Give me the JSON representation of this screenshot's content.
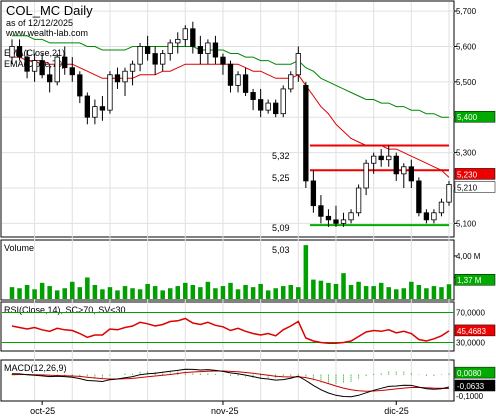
{
  "header": {
    "symbol": "COL_MC Daily",
    "asof": "as of 12/12/2025",
    "source": "www.wealth-lab.com"
  },
  "colors": {
    "up_candle": "#ffffff",
    "down_candle": "#000000",
    "ema21": "#dd0000",
    "ema70": "#008800",
    "volume": "#00a000",
    "rsi": "#dd0000",
    "rsi_band": "#00a000",
    "macd": "#000000",
    "macd_signal": "#cc0000",
    "macd_hist": "#00a000",
    "level_red": "#ee0000",
    "level_green": "#00aa00",
    "tag_green": "#00aa00",
    "tag_red": "#ee0000",
    "tag_black": "#000000"
  },
  "chart_data": [
    {
      "type": "candlestick",
      "title": "COL_MC Daily",
      "subtitle": "as of 12/12/2025",
      "legend": [
        "EMA(Close,21)",
        "EMA(Close,70)"
      ],
      "x_ticks": [
        "oct-25",
        "nov-25",
        "dic-25"
      ],
      "y_ticks": [
        "5,700",
        "5,600",
        "5,500",
        "5,400",
        "5,300",
        "5,200",
        "5,100"
      ],
      "ylim": [
        5.07,
        5.72
      ],
      "last_tags": {
        "ema70": "5,400",
        "ema21": "5,230",
        "close": "5,210"
      },
      "level_labels": [
        "5,32",
        "5,25",
        "5,09",
        "5,03"
      ],
      "levels": [
        {
          "label": "5,32",
          "value": 5.32,
          "color": "red"
        },
        {
          "label": "5,25",
          "value": 5.25,
          "color": "red"
        },
        {
          "label": "5,09",
          "value": 5.095,
          "color": "green"
        }
      ],
      "ohlc": [
        [
          5.57,
          5.62,
          5.55,
          5.6
        ],
        [
          5.6,
          5.62,
          5.56,
          5.57
        ],
        [
          5.57,
          5.59,
          5.51,
          5.53
        ],
        [
          5.53,
          5.58,
          5.5,
          5.56
        ],
        [
          5.56,
          5.58,
          5.51,
          5.52
        ],
        [
          5.52,
          5.55,
          5.47,
          5.5
        ],
        [
          5.5,
          5.58,
          5.49,
          5.57
        ],
        [
          5.57,
          5.6,
          5.52,
          5.54
        ],
        [
          5.54,
          5.57,
          5.5,
          5.52
        ],
        [
          5.52,
          5.53,
          5.44,
          5.46
        ],
        [
          5.46,
          5.47,
          5.38,
          5.4
        ],
        [
          5.4,
          5.45,
          5.38,
          5.43
        ],
        [
          5.43,
          5.46,
          5.39,
          5.42
        ],
        [
          5.42,
          5.53,
          5.41,
          5.52
        ],
        [
          5.52,
          5.54,
          5.48,
          5.5
        ],
        [
          5.5,
          5.54,
          5.46,
          5.53
        ],
        [
          5.53,
          5.56,
          5.49,
          5.55
        ],
        [
          5.55,
          5.61,
          5.53,
          5.6
        ],
        [
          5.6,
          5.63,
          5.56,
          5.58
        ],
        [
          5.58,
          5.6,
          5.52,
          5.55
        ],
        [
          5.55,
          5.59,
          5.53,
          5.58
        ],
        [
          5.58,
          5.62,
          5.56,
          5.61
        ],
        [
          5.61,
          5.64,
          5.58,
          5.62
        ],
        [
          5.62,
          5.66,
          5.6,
          5.65
        ],
        [
          5.65,
          5.67,
          5.58,
          5.6
        ],
        [
          5.6,
          5.63,
          5.55,
          5.58
        ],
        [
          5.58,
          5.62,
          5.55,
          5.61
        ],
        [
          5.61,
          5.63,
          5.55,
          5.57
        ],
        [
          5.57,
          5.58,
          5.52,
          5.55
        ],
        [
          5.55,
          5.56,
          5.47,
          5.49
        ],
        [
          5.49,
          5.53,
          5.47,
          5.52
        ],
        [
          5.52,
          5.54,
          5.46,
          5.47
        ],
        [
          5.47,
          5.48,
          5.42,
          5.45
        ],
        [
          5.45,
          5.48,
          5.4,
          5.42
        ],
        [
          5.42,
          5.45,
          5.41,
          5.44
        ],
        [
          5.44,
          5.45,
          5.4,
          5.41
        ],
        [
          5.41,
          5.49,
          5.4,
          5.48
        ],
        [
          5.48,
          5.53,
          5.47,
          5.52
        ],
        [
          5.52,
          5.6,
          5.5,
          5.58
        ],
        [
          5.49,
          5.5,
          5.2,
          5.22
        ],
        [
          5.22,
          5.25,
          5.13,
          5.15
        ],
        [
          5.15,
          5.18,
          5.1,
          5.12
        ],
        [
          5.12,
          5.14,
          5.09,
          5.11
        ],
        [
          5.11,
          5.15,
          5.09,
          5.1
        ],
        [
          5.1,
          5.13,
          5.09,
          5.11
        ],
        [
          5.11,
          5.14,
          5.1,
          5.13
        ],
        [
          5.13,
          5.21,
          5.12,
          5.2
        ],
        [
          5.2,
          5.28,
          5.18,
          5.27
        ],
        [
          5.27,
          5.3,
          5.24,
          5.29
        ],
        [
          5.29,
          5.31,
          5.26,
          5.28
        ],
        [
          5.28,
          5.32,
          5.26,
          5.29
        ],
        [
          5.29,
          5.3,
          5.22,
          5.24
        ],
        [
          5.24,
          5.27,
          5.2,
          5.26
        ],
        [
          5.26,
          5.28,
          5.2,
          5.22
        ],
        [
          5.22,
          5.23,
          5.12,
          5.13
        ],
        [
          5.13,
          5.14,
          5.1,
          5.11
        ],
        [
          5.11,
          5.14,
          5.1,
          5.13
        ],
        [
          5.13,
          5.17,
          5.12,
          5.16
        ],
        [
          5.16,
          5.22,
          5.15,
          5.21
        ]
      ],
      "ema21": [
        5.57,
        5.57,
        5.56,
        5.56,
        5.56,
        5.55,
        5.55,
        5.55,
        5.55,
        5.54,
        5.53,
        5.52,
        5.51,
        5.51,
        5.51,
        5.51,
        5.51,
        5.52,
        5.52,
        5.52,
        5.53,
        5.53,
        5.54,
        5.55,
        5.55,
        5.55,
        5.55,
        5.55,
        5.55,
        5.55,
        5.55,
        5.54,
        5.53,
        5.53,
        5.52,
        5.51,
        5.51,
        5.51,
        5.52,
        5.49,
        5.46,
        5.43,
        5.41,
        5.38,
        5.36,
        5.34,
        5.33,
        5.32,
        5.32,
        5.32,
        5.31,
        5.31,
        5.3,
        5.29,
        5.28,
        5.27,
        5.26,
        5.25,
        5.23
      ],
      "ema70": [
        5.63,
        5.63,
        5.63,
        5.62,
        5.62,
        5.61,
        5.61,
        5.61,
        5.61,
        5.61,
        5.6,
        5.6,
        5.59,
        5.59,
        5.59,
        5.59,
        5.6,
        5.6,
        5.6,
        5.6,
        5.6,
        5.6,
        5.6,
        5.6,
        5.6,
        5.59,
        5.59,
        5.59,
        5.59,
        5.58,
        5.58,
        5.57,
        5.57,
        5.56,
        5.56,
        5.55,
        5.55,
        5.55,
        5.56,
        5.54,
        5.53,
        5.51,
        5.5,
        5.49,
        5.48,
        5.47,
        5.46,
        5.45,
        5.45,
        5.44,
        5.44,
        5.43,
        5.43,
        5.42,
        5.42,
        5.41,
        5.41,
        5.4,
        5.4
      ]
    },
    {
      "type": "bar",
      "title": "Volume",
      "y_ticks": [
        "4,00 M",
        "2,00 M"
      ],
      "ylim": [
        0,
        5.2
      ],
      "last_tag": "1,37 M",
      "values": [
        1.1,
        1.0,
        1.3,
        0.9,
        1.5,
        1.2,
        0.8,
        1.0,
        1.6,
        1.1,
        2.0,
        1.3,
        0.9,
        1.1,
        0.8,
        1.2,
        1.0,
        0.9,
        1.4,
        1.2,
        0.8,
        1.0,
        1.2,
        1.5,
        1.3,
        1.1,
        1.6,
        1.0,
        1.2,
        1.5,
        0.9,
        1.3,
        1.1,
        1.4,
        0.8,
        1.0,
        1.2,
        1.3,
        1.1,
        5.0,
        1.8,
        1.7,
        1.5,
        1.4,
        2.4,
        1.3,
        1.6,
        1.2,
        1.2,
        1.5,
        1.1,
        0.9,
        1.0,
        1.6,
        1.3,
        1.0,
        1.2,
        1.1,
        1.37
      ]
    },
    {
      "type": "line",
      "title": "RSI(Close,14), SC>70, SV<30",
      "y_ticks": [
        "70,0000",
        "30,0000"
      ],
      "ylim": [
        20,
        80
      ],
      "bands": [
        70,
        30
      ],
      "last_tag": "45,4683",
      "values": [
        52,
        50,
        48,
        50,
        47,
        45,
        49,
        47,
        46,
        42,
        37,
        40,
        40,
        48,
        47,
        50,
        52,
        57,
        55,
        52,
        54,
        58,
        59,
        62,
        56,
        54,
        57,
        53,
        51,
        46,
        49,
        45,
        42,
        40,
        42,
        39,
        47,
        52,
        58,
        36,
        32,
        30,
        29,
        29,
        30,
        32,
        38,
        44,
        46,
        45,
        47,
        43,
        45,
        42,
        34,
        32,
        35,
        39,
        45.47
      ]
    },
    {
      "type": "bar+line",
      "title": "MACD(12,26,9)",
      "y_ticks": [
        "0,0080",
        "-0,1000"
      ],
      "ylim": [
        -0.13,
        0.06
      ],
      "last_tags": {
        "hist": "0,0080",
        "macd": "-0,0633"
      },
      "macd": [
        0.005,
        0.004,
        0.0,
        -0.003,
        -0.006,
        -0.01,
        -0.008,
        -0.01,
        -0.013,
        -0.02,
        -0.03,
        -0.032,
        -0.035,
        -0.026,
        -0.022,
        -0.016,
        -0.01,
        0.0,
        0.005,
        0.007,
        0.012,
        0.018,
        0.022,
        0.028,
        0.027,
        0.024,
        0.026,
        0.022,
        0.017,
        0.009,
        0.005,
        -0.002,
        -0.01,
        -0.018,
        -0.022,
        -0.028,
        -0.025,
        -0.018,
        -0.008,
        -0.03,
        -0.055,
        -0.077,
        -0.094,
        -0.106,
        -0.112,
        -0.113,
        -0.106,
        -0.093,
        -0.08,
        -0.07,
        -0.06,
        -0.058,
        -0.054,
        -0.055,
        -0.064,
        -0.072,
        -0.075,
        -0.072,
        -0.0633
      ],
      "signal": [
        0.0,
        0.001,
        0.001,
        0.0,
        -0.001,
        -0.003,
        -0.004,
        -0.005,
        -0.007,
        -0.009,
        -0.013,
        -0.017,
        -0.02,
        -0.022,
        -0.022,
        -0.021,
        -0.019,
        -0.015,
        -0.011,
        -0.007,
        -0.003,
        0.001,
        0.006,
        0.011,
        0.014,
        0.016,
        0.018,
        0.019,
        0.019,
        0.017,
        0.015,
        0.011,
        0.007,
        0.002,
        -0.003,
        -0.008,
        -0.011,
        -0.012,
        -0.011,
        -0.015,
        -0.023,
        -0.034,
        -0.046,
        -0.058,
        -0.069,
        -0.077,
        -0.083,
        -0.085,
        -0.084,
        -0.081,
        -0.077,
        -0.073,
        -0.069,
        -0.066,
        -0.066,
        -0.067,
        -0.069,
        -0.07,
        -0.0713
      ],
      "hist": [
        0.005,
        0.003,
        -0.001,
        -0.003,
        -0.005,
        -0.007,
        -0.004,
        -0.005,
        -0.006,
        -0.011,
        -0.017,
        -0.015,
        -0.015,
        -0.004,
        0.0,
        0.005,
        0.009,
        0.015,
        0.016,
        0.014,
        0.015,
        0.017,
        0.016,
        0.017,
        0.013,
        0.008,
        0.008,
        0.003,
        -0.002,
        -0.008,
        -0.01,
        -0.013,
        -0.017,
        -0.02,
        -0.019,
        -0.02,
        -0.014,
        -0.006,
        0.003,
        -0.015,
        -0.032,
        -0.043,
        -0.048,
        -0.048,
        -0.043,
        -0.036,
        -0.023,
        -0.008,
        0.004,
        0.011,
        0.017,
        0.015,
        0.015,
        0.011,
        0.002,
        -0.005,
        -0.006,
        -0.002,
        0.008
      ]
    }
  ]
}
